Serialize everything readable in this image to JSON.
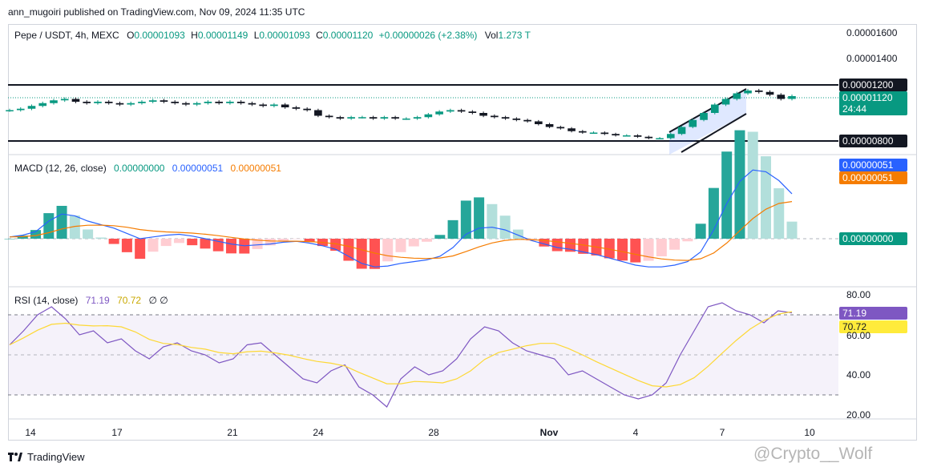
{
  "publisher": "ann_mugoiri published on TradingView.com, Nov 09, 2024 11:35 UTC",
  "brand": "TradingView",
  "watermark": "@Crypto__Wolf",
  "legend": {
    "symbol": "Pepe / USDT, 4h, MEXC",
    "o_label": "O",
    "o": "0.00001093",
    "h_label": "H",
    "h": "0.00001149",
    "l_label": "L",
    "l": "0.00001093",
    "c_label": "C",
    "c": "0.00001120",
    "change": "+0.00000026 (+2.38%)",
    "vol_label": "Vol",
    "vol": "1.273 T"
  },
  "macd_legend": {
    "name": "MACD (12, 26, close)",
    "v1": "0.00000000",
    "v2": "0.00000051",
    "v3": "0.00000051"
  },
  "rsi_legend": {
    "name": "RSI (14, close)",
    "v1": "71.19",
    "v2": "70.72",
    "icons": "∅ ∅"
  },
  "price_axis": {
    "labels": [
      "0.00001600",
      "0.00001400"
    ],
    "tags": {
      "resistance": "0.00001200",
      "last": "0.00001120",
      "countdown": "24:44",
      "support": "0.00000800"
    }
  },
  "macd_axis": {
    "tags": {
      "signal": "0.00000051",
      "macd": "0.00000051",
      "hist": "0.00000000"
    }
  },
  "rsi_axis": {
    "labels": [
      "80.00",
      "60.00",
      "40.00",
      "20.00"
    ],
    "tags": {
      "rsi": "71.19",
      "ma": "70.72"
    }
  },
  "x_axis": [
    {
      "label": "14",
      "bold": false
    },
    {
      "label": "17",
      "bold": false
    },
    {
      "label": "21",
      "bold": false
    },
    {
      "label": "24",
      "bold": false
    },
    {
      "label": "28",
      "bold": false
    },
    {
      "label": "Nov",
      "bold": true
    },
    {
      "label": "4",
      "bold": false
    },
    {
      "label": "7",
      "bold": false
    },
    {
      "label": "10",
      "bold": false
    }
  ],
  "colors": {
    "up": "#089981",
    "down": "#f23645",
    "macd": "#2962ff",
    "signal": "#f57c00",
    "rsi": "#7e57c2",
    "rsi_ma": "#fdd835",
    "channel": "#2962ff"
  },
  "chart_data": {
    "type": "candlestick",
    "title": "Pepe / USDT, 4h, MEXC",
    "price_levels": {
      "resistance": 1.2e-05,
      "support": 8e-06,
      "last": 1.12e-05
    },
    "price_close_path": [
      1.02e-05,
      1.03e-05,
      1.05e-05,
      1.07e-05,
      1.09e-05,
      1.1e-05,
      1.08e-05,
      1.07e-05,
      1.08e-05,
      1.07e-05,
      1.06e-05,
      1.07e-05,
      1.08e-05,
      1.09e-05,
      1.08e-05,
      1.07e-05,
      1.06e-05,
      1.07e-05,
      1.08e-05,
      1.07e-05,
      1.08e-05,
      1.07e-05,
      1.06e-05,
      1.05e-05,
      1.06e-05,
      1.04e-05,
      1.03e-05,
      1.02e-05,
      9.8e-06,
      9.7e-06,
      9.6e-06,
      9.7e-06,
      9.7e-06,
      9.6e-06,
      9.7e-06,
      9.6e-06,
      9.6e-06,
      9.7e-06,
      9.9e-06,
      1.01e-05,
      1.02e-05,
      1.01e-05,
      1e-05,
      9.8e-06,
      9.7e-06,
      9.6e-06,
      9.5e-06,
      9.4e-06,
      9.2e-06,
      9e-06,
      8.9e-06,
      8.7e-06,
      8.6e-06,
      8.6e-06,
      8.5e-06,
      8.4e-06,
      8.4e-06,
      8.3e-06,
      8.2e-06,
      8.2e-06,
      8.5e-06,
      9e-06,
      9.5e-06,
      1e-05,
      1.06e-05,
      1.1e-05,
      1.14e-05,
      1.16e-05,
      1.15e-05,
      1.13e-05,
      1.1e-05,
      1.12e-05
    ],
    "macd_line": [
      2e-08,
      4e-08,
      8e-08,
      2e-07,
      2.8e-07,
      2.6e-07,
      2e-07,
      1.6e-07,
      1.2e-07,
      6e-08,
      0.0,
      2e-08,
      4e-08,
      5e-08,
      3e-08,
      0.0,
      -3e-08,
      -6e-08,
      -8e-08,
      -7e-08,
      -6e-08,
      -4e-08,
      -3e-08,
      -5e-08,
      -8e-08,
      -1.2e-07,
      -2e-07,
      -2.8e-07,
      -3.2e-07,
      -3.1e-07,
      -2.8e-07,
      -2.6e-07,
      -2.4e-07,
      -2e-07,
      -1e-07,
      5e-08,
      1.2e-07,
      1.3e-07,
      1e-07,
      4e-08,
      -2e-08,
      -6e-08,
      -1e-07,
      -1.2e-07,
      -1.5e-07,
      -1.8e-07,
      -2.2e-07,
      -2.6e-07,
      -3e-07,
      -3.2e-07,
      -3.2e-07,
      -3e-07,
      -2.6e-07,
      -1.5e-07,
      1e-07,
      4e-07,
      6.5e-07,
      7.8e-07,
      7.6e-07,
      6.6e-07,
      5.1e-07
    ],
    "rsi": [
      55,
      62,
      70,
      74,
      68,
      60,
      62,
      56,
      58,
      52,
      48,
      54,
      56,
      52,
      50,
      46,
      48,
      55,
      56,
      50,
      44,
      38,
      36,
      42,
      45,
      34,
      30,
      24,
      38,
      44,
      40,
      42,
      48,
      58,
      64,
      62,
      56,
      52,
      50,
      48,
      40,
      42,
      38,
      34,
      30,
      28,
      30,
      36,
      50,
      62,
      74,
      76,
      72,
      70,
      66,
      72,
      71
    ],
    "x_ticks": [
      "14",
      "17",
      "21",
      "24",
      "28",
      "Nov",
      "4",
      "7",
      "10"
    ]
  }
}
